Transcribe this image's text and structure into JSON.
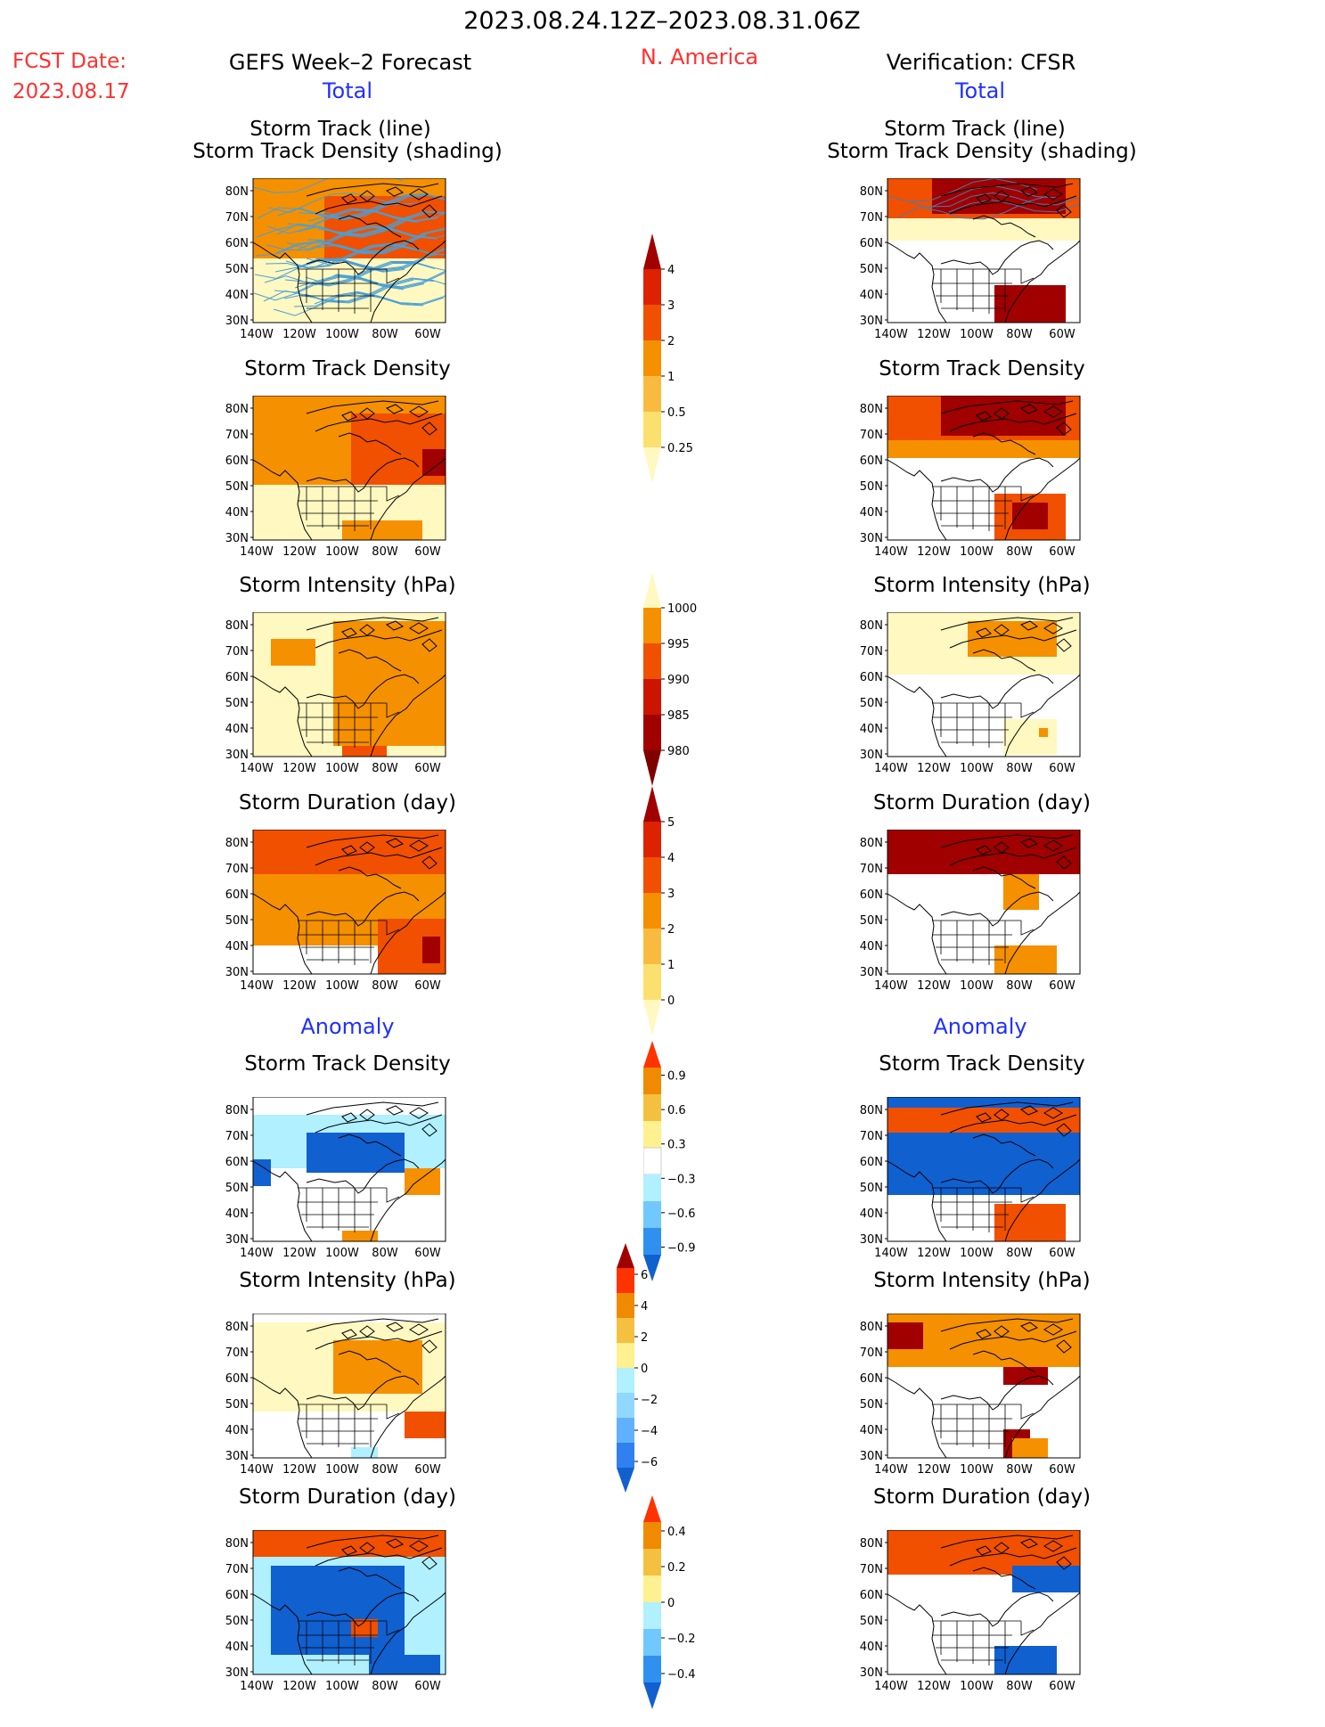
{
  "header": {
    "period": "2023.08.24.12Z–2023.08.31.06Z",
    "fcst_label": "FCST Date:",
    "fcst_date": "2023.08.17",
    "region": "N. America",
    "left_title": "GEFS Week–2 Forecast",
    "right_title": "Verification: CFSR",
    "left_section": "Total",
    "right_section": "Total",
    "left_anomaly": "Anomaly",
    "right_anomaly": "Anomaly"
  },
  "panel_titles": {
    "track_line": "Storm Track (line)",
    "track_shading": "Storm Track Density (shading)",
    "density": "Storm Track Density",
    "intensity": "Storm Intensity (hPa)",
    "duration": "Storm Duration (day)"
  },
  "axes": {
    "lat_labels": [
      "80N",
      "70N",
      "60N",
      "50N",
      "40N",
      "30N"
    ],
    "lon_labels": [
      "140W",
      "120W",
      "100W",
      "80W",
      "60W"
    ]
  },
  "colorbars": [
    {
      "id": "total-density",
      "labels": [
        "4",
        "3",
        "2",
        "1",
        "0.5",
        "0.25"
      ],
      "colors": [
        "#a00000",
        "#dd2200",
        "#f05000",
        "#f59000",
        "#f8bb40",
        "#fbe070",
        "#fff8c0"
      ]
    },
    {
      "id": "total-intensity",
      "labels": [
        "1000",
        "995",
        "990",
        "985",
        "980"
      ],
      "colors": [
        "#fff8c0",
        "#f59000",
        "#f05000",
        "#cc1500",
        "#a00000",
        "#800000"
      ]
    },
    {
      "id": "total-duration",
      "labels": [
        "5",
        "4",
        "3",
        "2",
        "1",
        "0"
      ],
      "colors": [
        "#a00000",
        "#dd2200",
        "#f05000",
        "#f59000",
        "#f8bb40",
        "#fbe070",
        "#fff8c0"
      ]
    },
    {
      "id": "anom-density",
      "labels": [
        "0.9",
        "0.6",
        "0.3",
        "−0.3",
        "−0.6",
        "−0.9"
      ],
      "colors": [
        "#ff3300",
        "#f08a00",
        "#f5c040",
        "#fff090",
        "#ffffff",
        "#b0f0ff",
        "#70c8ff",
        "#3090f0",
        "#1060d0"
      ]
    },
    {
      "id": "anom-intensity",
      "labels": [
        "6",
        "4",
        "2",
        "0",
        "−2",
        "−4",
        "−6"
      ],
      "colors": [
        "#a00000",
        "#ff3300",
        "#f08a00",
        "#f5c040",
        "#fff090",
        "#b0f0ff",
        "#90d8ff",
        "#60b0ff",
        "#3080f0",
        "#1060d0"
      ]
    },
    {
      "id": "anom-duration",
      "labels": [
        "0.4",
        "0.2",
        "0",
        "−0.2",
        "−0.4"
      ],
      "colors": [
        "#ff3300",
        "#f08a00",
        "#f5c040",
        "#fff090",
        "#b0f0ff",
        "#70c8ff",
        "#3090f0",
        "#1060d0"
      ]
    }
  ],
  "legend_colors": {
    "red": "#a00000",
    "orange": "#f05000",
    "amber": "#f59000",
    "yellow": "#fff8c0",
    "blue": "#1060d0",
    "cyan": "#b0f0ff",
    "track_line": "#4a9fd5"
  }
}
